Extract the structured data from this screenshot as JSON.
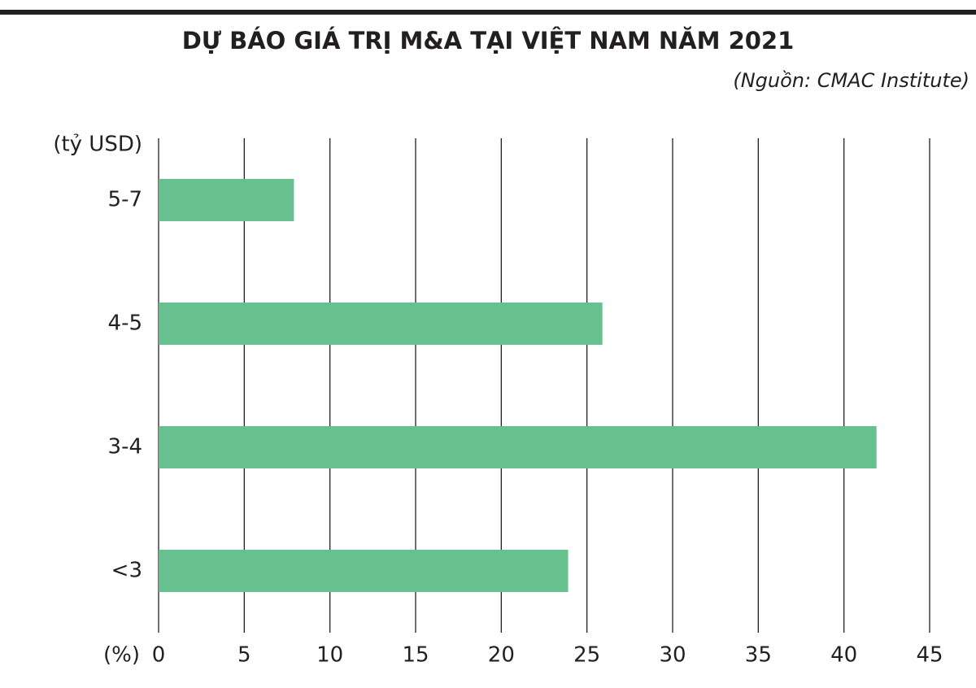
{
  "chart_data": {
    "type": "hbar",
    "title": "DỰ BÁO GIÁ TRỊ M&A TẠI VIỆT NAM NĂM 2021",
    "source": "(Nguồn: CMAC Institute)",
    "y_label": "(tỷ USD)",
    "x_label": "(%)",
    "categories": [
      "5-7",
      "4-5",
      "3-4",
      "<3"
    ],
    "values": [
      7.9,
      25.9,
      41.9,
      23.9
    ],
    "color": "#66c18e",
    "xlim": [
      0,
      45
    ],
    "xticks": [
      0,
      5,
      10,
      15,
      20,
      25,
      30,
      35,
      40,
      45
    ],
    "grid": true
  }
}
